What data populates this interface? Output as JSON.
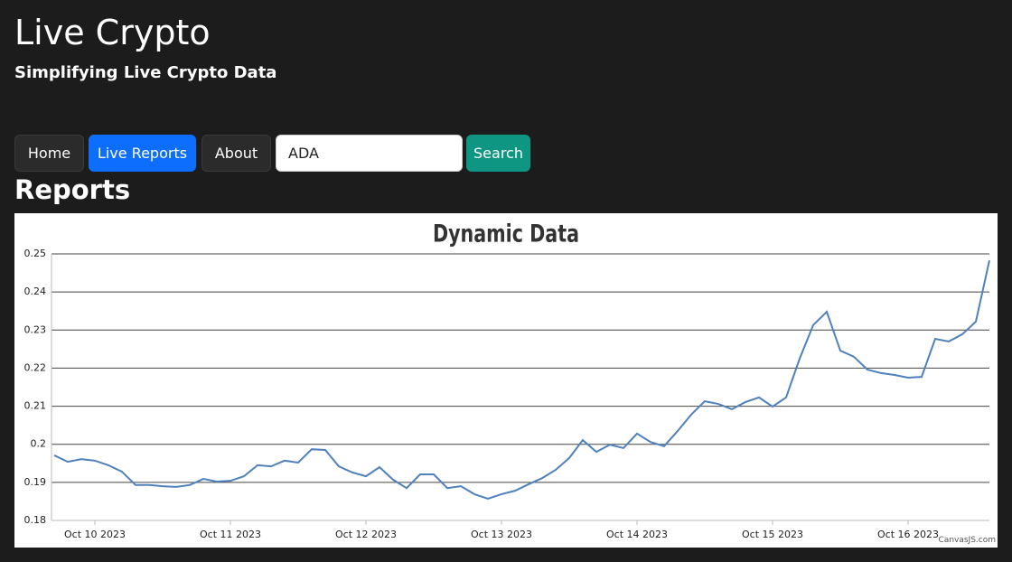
{
  "header": {
    "title": "Live Crypto",
    "subtitle": "Simplifying Live Crypto Data"
  },
  "nav": {
    "buttons": [
      "Home",
      "Live Reports",
      "About"
    ],
    "active": 1,
    "search_value": "ADA",
    "search_button": "Search"
  },
  "section_title": "Reports",
  "credit": "CanvasJS.com",
  "chart_data": {
    "type": "line",
    "title": "Dynamic Data",
    "color": "#4f81bc",
    "grid": true,
    "categories": [
      null,
      null,
      null,
      "Oct 10 2023",
      null,
      null,
      null,
      null,
      null,
      null,
      null,
      null,
      null,
      "Oct 11 2023",
      null,
      null,
      null,
      null,
      null,
      null,
      null,
      null,
      null,
      "Oct 12 2023",
      null,
      null,
      null,
      null,
      null,
      null,
      null,
      null,
      null,
      "Oct 13 2023",
      null,
      null,
      null,
      null,
      null,
      null,
      null,
      null,
      null,
      "Oct 14 2023",
      null,
      null,
      null,
      null,
      null,
      null,
      null,
      null,
      null,
      "Oct 15 2023",
      null,
      null,
      null,
      null,
      null,
      null,
      null,
      null,
      null,
      "Oct 16 2023",
      null,
      null,
      null,
      null,
      null,
      null
    ],
    "values": [
      0.1971,
      0.1954,
      0.1961,
      0.1957,
      0.1945,
      0.1928,
      0.1893,
      0.1893,
      0.189,
      0.1888,
      0.1893,
      0.1909,
      0.1902,
      0.1904,
      0.1916,
      0.1945,
      0.1942,
      0.1957,
      0.1952,
      0.1987,
      0.1985,
      0.1942,
      0.1926,
      0.1916,
      0.194,
      0.1907,
      0.1885,
      0.1921,
      0.1921,
      0.1885,
      0.189,
      0.1869,
      0.1857,
      0.1869,
      0.1878,
      0.1895,
      0.1911,
      0.1933,
      0.1964,
      0.2011,
      0.198,
      0.1999,
      0.199,
      0.2028,
      0.2006,
      0.1995,
      0.2035,
      0.2078,
      0.2113,
      0.2106,
      0.2092,
      0.2111,
      0.2123,
      0.2099,
      0.2123,
      0.2225,
      0.2313,
      0.2348,
      0.2246,
      0.223,
      0.2196,
      0.2187,
      0.2182,
      0.2175,
      0.2177,
      0.2277,
      0.227,
      0.2289,
      0.2322,
      0.2483
    ],
    "ylim": [
      0.18,
      0.25
    ],
    "yticks": [
      0.18,
      0.19,
      0.2,
      0.21,
      0.22,
      0.23,
      0.24,
      0.25
    ]
  }
}
